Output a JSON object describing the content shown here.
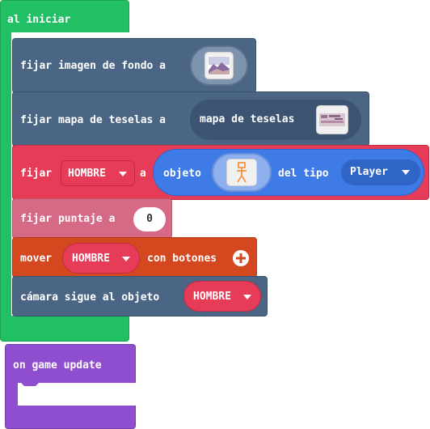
{
  "on_start": {
    "label": "al iniciar"
  },
  "set_background": {
    "label": "fijar imagen de fondo a"
  },
  "set_tilemap": {
    "label": "fijar mapa de teselas a",
    "tilemap_label": "mapa de teselas"
  },
  "set_sprite": {
    "label_set": "fijar",
    "variable": "HOMBRE",
    "label_to": "a",
    "create_label": "objeto",
    "kind_label": "del tipo",
    "kind_value": "Player"
  },
  "set_score": {
    "label": "fijar puntaje a",
    "value": "0"
  },
  "move_buttons": {
    "label_move": "mover",
    "variable": "HOMBRE",
    "label_with": "con botones"
  },
  "camera_follow": {
    "label": "cámara sigue al objeto",
    "variable": "HOMBRE"
  },
  "on_game_update": {
    "label": "on game update"
  },
  "colors": {
    "events": "#22c064",
    "scene": "#4b6584",
    "sprites": "#e63c57",
    "info": "#d46a85",
    "controller": "#d44820",
    "loops": "#8e4ecf",
    "object_pill": "#3e7be6"
  }
}
